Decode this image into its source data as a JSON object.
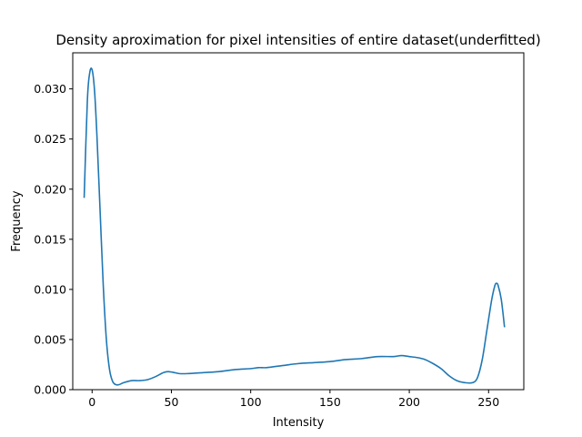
{
  "chart_data": {
    "type": "line",
    "title": "Density aproximation for pixel intensities of entire dataset(underfitted)",
    "xlabel": "Intensity",
    "ylabel": "Frequency",
    "xlim": [
      -12.2,
      272.2
    ],
    "ylim": [
      0,
      0.0336
    ],
    "xticks": [
      0,
      50,
      100,
      150,
      200,
      250
    ],
    "xtick_labels": [
      "0",
      "50",
      "100",
      "150",
      "200",
      "250"
    ],
    "yticks": [
      0,
      0.005,
      0.01,
      0.015,
      0.02,
      0.025,
      0.03
    ],
    "ytick_labels": [
      "0.000",
      "0.005",
      "0.010",
      "0.015",
      "0.020",
      "0.025",
      "0.030"
    ],
    "grid": false,
    "legend": "none",
    "series": [
      {
        "color": "#1f77b4",
        "x": [
          -5,
          -3,
          -1.5,
          0,
          1.5,
          3,
          5,
          7,
          9,
          11,
          13,
          15,
          17,
          20,
          25,
          30,
          35,
          40,
          45,
          48,
          52,
          55,
          60,
          70,
          80,
          90,
          100,
          105,
          110,
          120,
          130,
          140,
          150,
          160,
          170,
          180,
          190,
          195,
          200,
          205,
          210,
          215,
          220,
          225,
          230,
          235,
          240,
          243,
          246,
          249,
          252,
          254,
          255,
          256,
          258,
          260
        ],
        "y": [
          0.0192,
          0.0288,
          0.0316,
          0.0319,
          0.0299,
          0.0255,
          0.018,
          0.0105,
          0.005,
          0.002,
          0.0008,
          0.0005,
          0.0005,
          0.0007,
          0.0009,
          0.0009,
          0.001,
          0.0013,
          0.0017,
          0.0018,
          0.0017,
          0.0016,
          0.0016,
          0.0017,
          0.0018,
          0.002,
          0.0021,
          0.0022,
          0.0022,
          0.0024,
          0.0026,
          0.0027,
          0.0028,
          0.003,
          0.0031,
          0.0033,
          0.0033,
          0.0034,
          0.0033,
          0.0032,
          0.003,
          0.0026,
          0.0021,
          0.0014,
          0.0009,
          0.0007,
          0.0007,
          0.0012,
          0.003,
          0.006,
          0.009,
          0.0104,
          0.0106,
          0.0104,
          0.009,
          0.0063
        ]
      }
    ]
  }
}
